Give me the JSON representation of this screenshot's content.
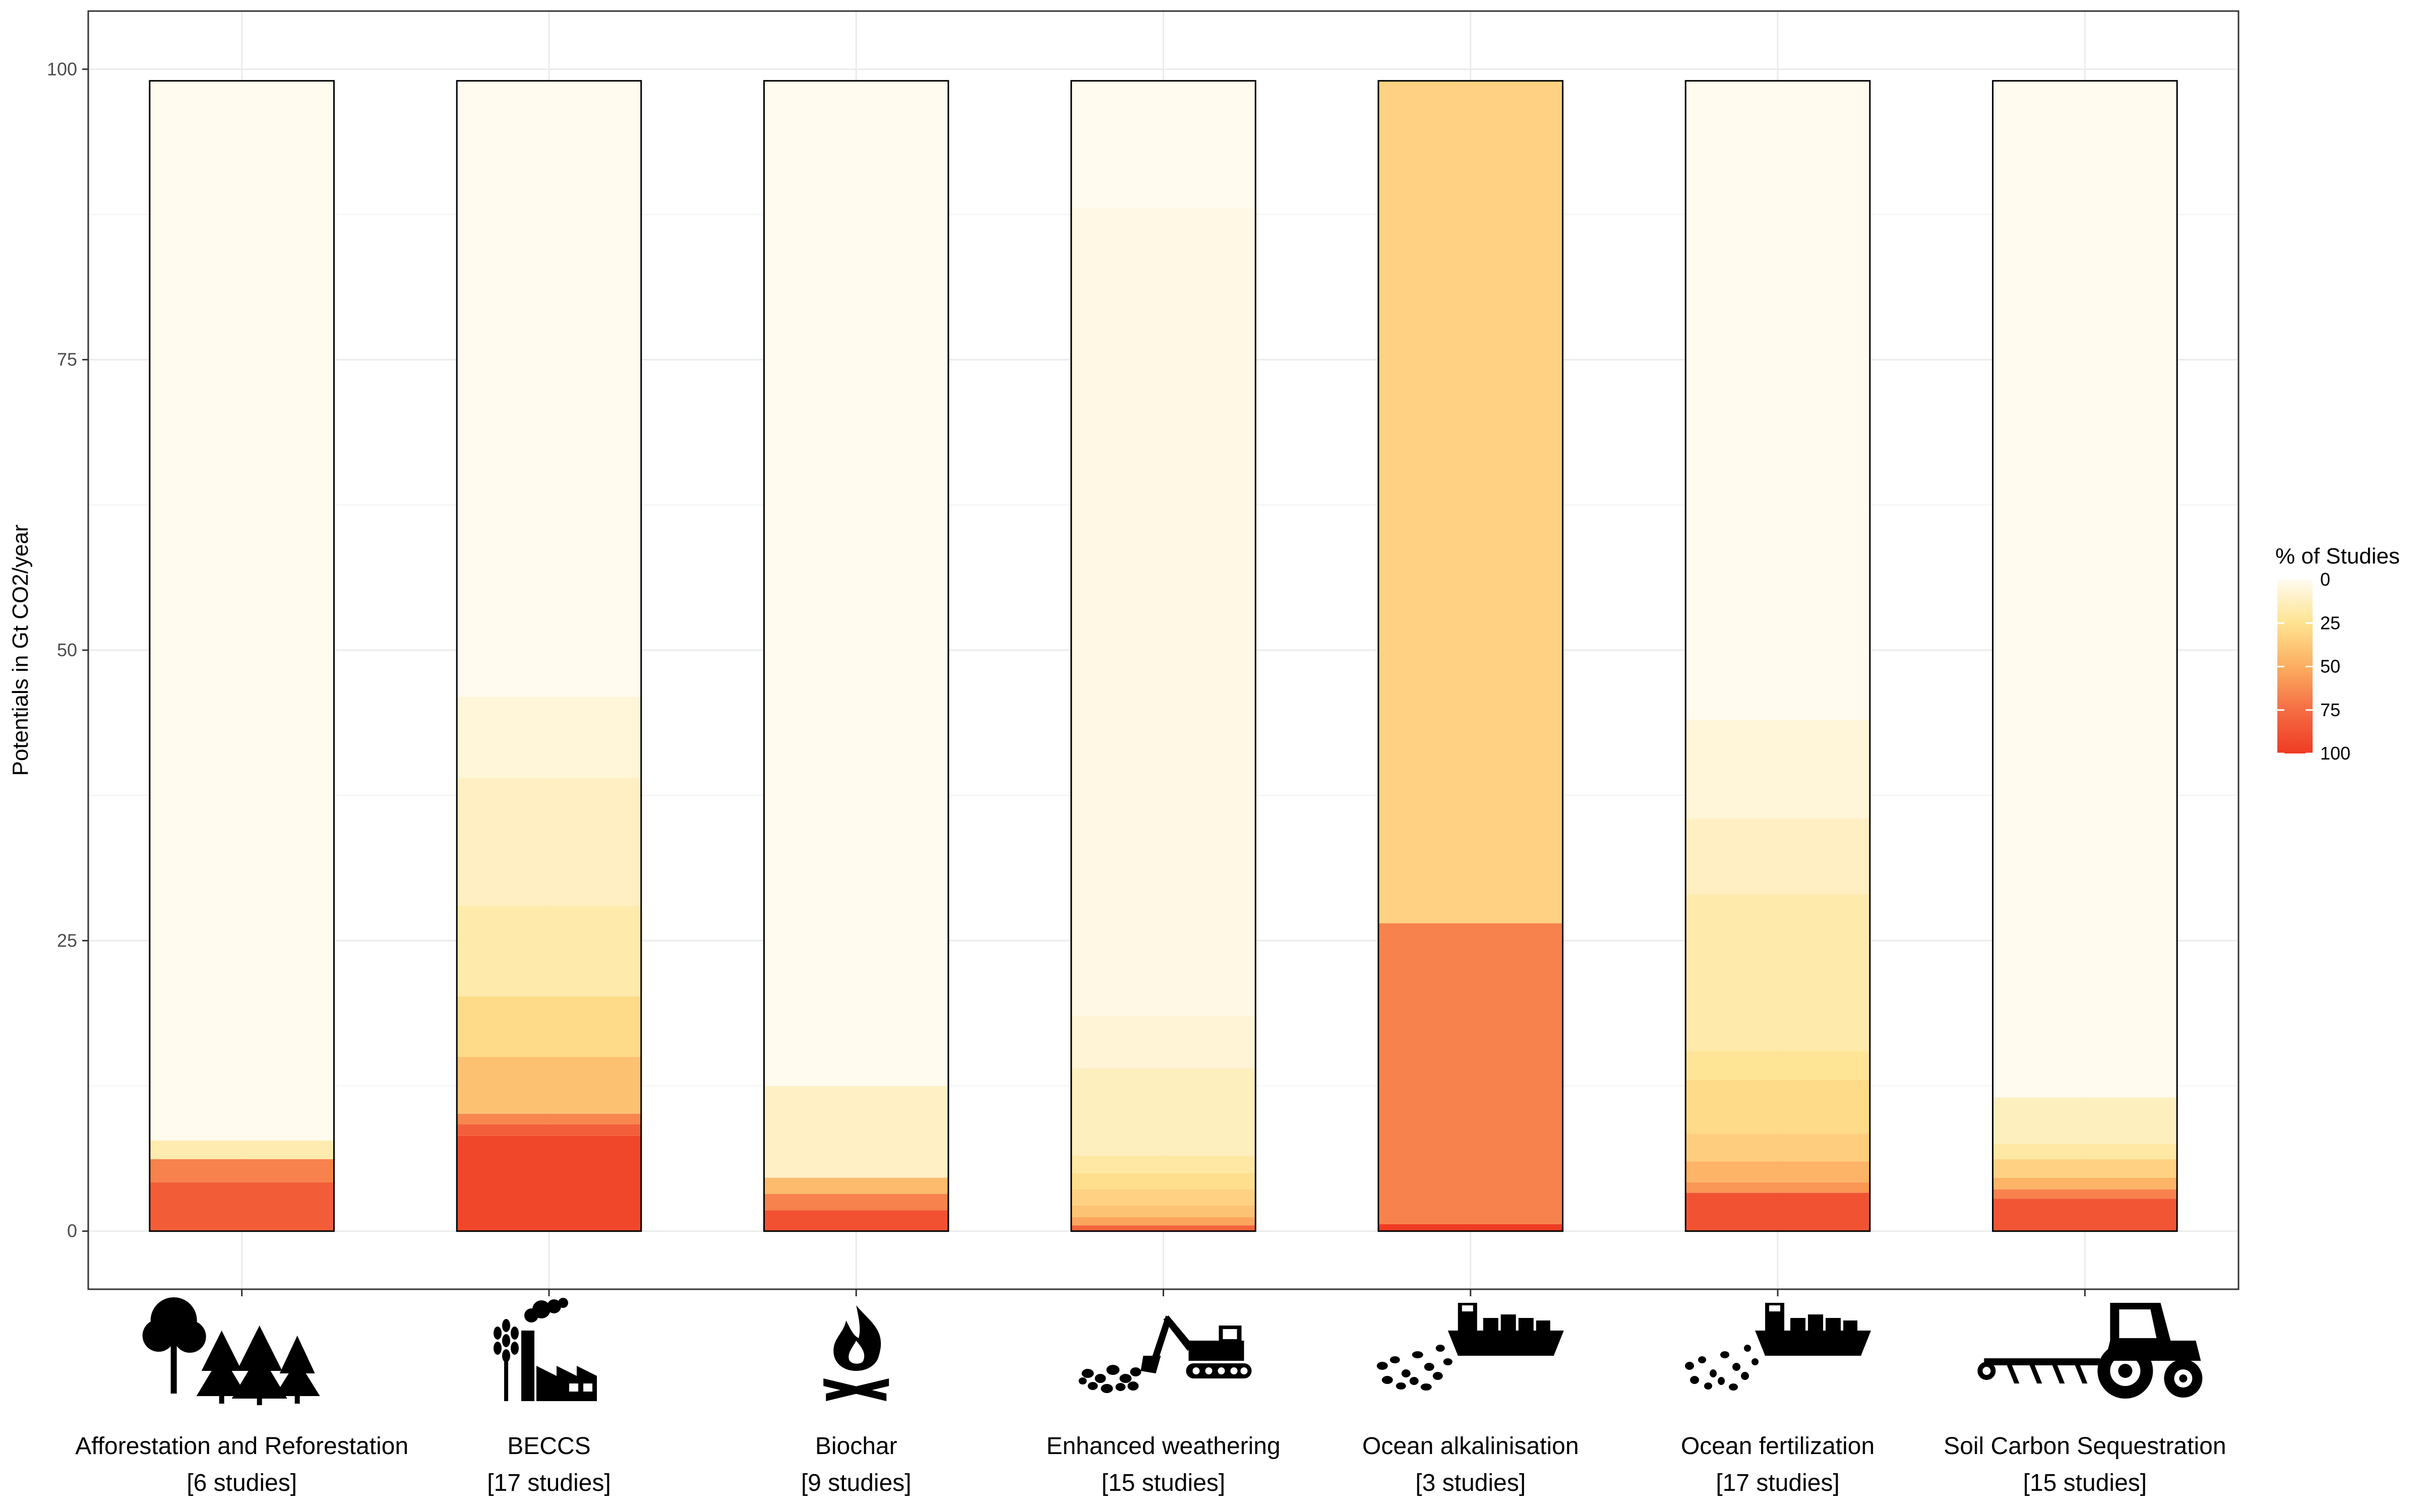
{
  "chart_data": {
    "type": "bar",
    "stacked": true,
    "title": "",
    "xlabel": "",
    "ylabel": "Potentials in Gt CO2/year",
    "ylim": [
      -5,
      105
    ],
    "yticks": [
      0,
      25,
      50,
      75,
      100
    ],
    "grid": true,
    "legend": {
      "title": "% of Studies",
      "position": "right",
      "ticks": [
        0,
        25,
        50,
        75,
        100
      ],
      "colors": [
        "#fffbef",
        "#fee391",
        "#fdae61",
        "#f46d43",
        "#ef3b22"
      ]
    },
    "categories": [
      {
        "name": "Afforestation and Reforestation",
        "studies": "[6 studies]",
        "icon": "trees-icon",
        "segments": [
          {
            "from": 0,
            "to": 4.2,
            "pct": 83
          },
          {
            "from": 4.2,
            "to": 6.2,
            "pct": 67
          },
          {
            "from": 6.2,
            "to": 7.8,
            "pct": 17
          },
          {
            "from": 7.8,
            "to": 99,
            "pct": 0
          }
        ]
      },
      {
        "name": "BECCS",
        "studies": "[17 studies]",
        "icon": "factory-wheat-icon",
        "segments": [
          {
            "from": 0,
            "to": 8.2,
            "pct": 94
          },
          {
            "from": 8.2,
            "to": 9.2,
            "pct": 82
          },
          {
            "from": 9.2,
            "to": 10.1,
            "pct": 65
          },
          {
            "from": 10.1,
            "to": 15,
            "pct": 41
          },
          {
            "from": 15,
            "to": 20.2,
            "pct": 29
          },
          {
            "from": 20.2,
            "to": 28,
            "pct": 18
          },
          {
            "from": 28,
            "to": 39,
            "pct": 12
          },
          {
            "from": 39,
            "to": 46,
            "pct": 6
          },
          {
            "from": 46,
            "to": 99,
            "pct": 0
          }
        ]
      },
      {
        "name": "Biochar",
        "studies": "[9 studies]",
        "icon": "fire-icon",
        "segments": [
          {
            "from": 0,
            "to": 1.8,
            "pct": 89
          },
          {
            "from": 1.8,
            "to": 3.2,
            "pct": 67
          },
          {
            "from": 3.2,
            "to": 4.6,
            "pct": 44
          },
          {
            "from": 4.6,
            "to": 12.5,
            "pct": 11
          },
          {
            "from": 12.5,
            "to": 99,
            "pct": 0
          }
        ]
      },
      {
        "name": "Enhanced weathering",
        "studies": "[15 studies]",
        "icon": "excavator-rocks-icon",
        "segments": [
          {
            "from": 0,
            "to": 0.5,
            "pct": 80
          },
          {
            "from": 0.5,
            "to": 1.2,
            "pct": 53
          },
          {
            "from": 1.2,
            "to": 2.2,
            "pct": 40
          },
          {
            "from": 2.2,
            "to": 3.6,
            "pct": 33
          },
          {
            "from": 3.6,
            "to": 5,
            "pct": 27
          },
          {
            "from": 5,
            "to": 6.5,
            "pct": 20
          },
          {
            "from": 6.5,
            "to": 14,
            "pct": 13
          },
          {
            "from": 14,
            "to": 18.5,
            "pct": 7
          },
          {
            "from": 18.5,
            "to": 88,
            "pct": 3
          },
          {
            "from": 88,
            "to": 99,
            "pct": 0
          }
        ]
      },
      {
        "name": "Ocean alkalinisation",
        "studies": "[3 studies]",
        "icon": "ship-rocks-icon",
        "segments": [
          {
            "from": 0,
            "to": 0.6,
            "pct": 100
          },
          {
            "from": 0.6,
            "to": 26.5,
            "pct": 67
          },
          {
            "from": 26.5,
            "to": 99,
            "pct": 33
          }
        ]
      },
      {
        "name": "Ocean fertilization",
        "studies": "[17 studies]",
        "icon": "ship-particles-icon",
        "segments": [
          {
            "from": 0,
            "to": 3.3,
            "pct": 88
          },
          {
            "from": 3.3,
            "to": 4.2,
            "pct": 59
          },
          {
            "from": 4.2,
            "to": 6,
            "pct": 47
          },
          {
            "from": 6,
            "to": 8.4,
            "pct": 35
          },
          {
            "from": 8.4,
            "to": 13,
            "pct": 29
          },
          {
            "from": 13,
            "to": 15.5,
            "pct": 24
          },
          {
            "from": 15.5,
            "to": 29,
            "pct": 18
          },
          {
            "from": 29,
            "to": 35.5,
            "pct": 12
          },
          {
            "from": 35.5,
            "to": 44,
            "pct": 6
          },
          {
            "from": 44,
            "to": 99,
            "pct": 0
          }
        ]
      },
      {
        "name": "Soil Carbon Sequestration",
        "studies": "[15 studies]",
        "icon": "tractor-plow-icon",
        "segments": [
          {
            "from": 0,
            "to": 2.8,
            "pct": 87
          },
          {
            "from": 2.8,
            "to": 3.6,
            "pct": 67
          },
          {
            "from": 3.6,
            "to": 4.6,
            "pct": 47
          },
          {
            "from": 4.6,
            "to": 6.2,
            "pct": 33
          },
          {
            "from": 6.2,
            "to": 7.5,
            "pct": 20
          },
          {
            "from": 7.5,
            "to": 11.5,
            "pct": 13
          },
          {
            "from": 11.5,
            "to": 99,
            "pct": 0
          }
        ]
      }
    ]
  }
}
